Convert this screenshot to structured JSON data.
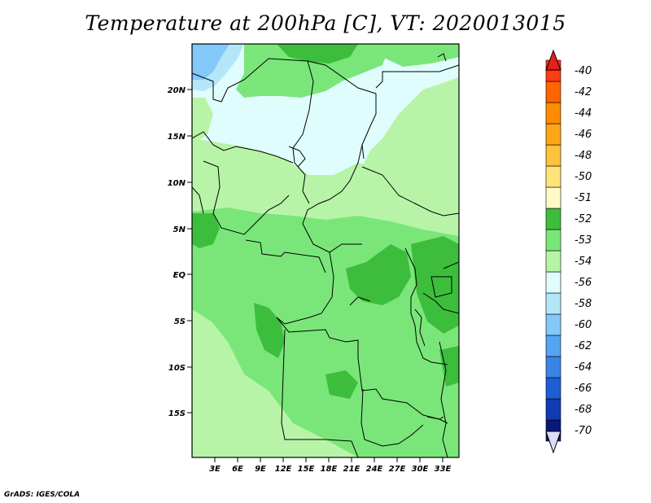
{
  "title": "Temperature at 200hPa [C], VT: 2020013015",
  "footer": "GrADS: IGES/COLA",
  "axes": {
    "lat_labels": [
      "20N",
      "15N",
      "10N",
      "5N",
      "EQ",
      "5S",
      "10S",
      "15S"
    ],
    "lon_labels": [
      "3E",
      "6E",
      "9E",
      "12E",
      "15E",
      "18E",
      "21E",
      "24E",
      "27E",
      "30E",
      "33E"
    ]
  },
  "colorbar": {
    "labels": [
      "-40",
      "-42",
      "-44",
      "-46",
      "-48",
      "-50",
      "-51",
      "-52",
      "-53",
      "-54",
      "-56",
      "-58",
      "-60",
      "-62",
      "-64",
      "-66",
      "-68",
      "-70"
    ],
    "colors": [
      "#ff3c14",
      "#ff6400",
      "#ff8c00",
      "#ffa518",
      "#ffc23c",
      "#ffe478",
      "#fffac8",
      "#3cbe3c",
      "#7ae67a",
      "#b8f4a8",
      "#e0fdfd",
      "#b4e6fa",
      "#82c8f8",
      "#55a5f0",
      "#3a84e6",
      "#1e5ed2",
      "#0f3cb0",
      "#0a1878"
    ],
    "top_color": "#e61e1e",
    "bottom_color": "#dcdcf5"
  },
  "map_colors": {
    "c52": "#3cbe3c",
    "c53": "#7ae67a",
    "c54": "#b8f4a8",
    "c56": "#e0fdfd",
    "c58": "#b4e6fa",
    "c60": "#82c8f8"
  }
}
